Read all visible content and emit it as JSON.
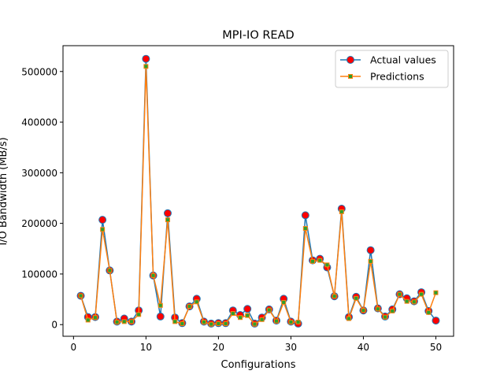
{
  "chart_data": {
    "type": "line",
    "title": "MPI-IO READ",
    "xlabel": "Configurations",
    "ylabel": "I/O Bandwidth (MB/s)",
    "xlim": [
      -1.45,
      52.45
    ],
    "ylim": [
      -23000,
      551000
    ],
    "xticks": [
      0,
      10,
      20,
      30,
      40,
      50
    ],
    "yticks": [
      0,
      100000,
      200000,
      300000,
      400000,
      500000
    ],
    "xtick_labels": [
      "0",
      "10",
      "20",
      "30",
      "40",
      "50"
    ],
    "ytick_labels": [
      "0",
      "100000",
      "200000",
      "300000",
      "400000",
      "500000"
    ],
    "grid": false,
    "legend_position": "upper right",
    "x": [
      1,
      2,
      3,
      4,
      5,
      6,
      7,
      8,
      9,
      10,
      11,
      12,
      13,
      14,
      15,
      16,
      17,
      18,
      19,
      20,
      21,
      22,
      23,
      24,
      25,
      26,
      27,
      28,
      29,
      30,
      31,
      32,
      33,
      34,
      35,
      36,
      37,
      38,
      39,
      40,
      41,
      42,
      43,
      44,
      45,
      46,
      47,
      48,
      49,
      50
    ],
    "series": [
      {
        "name": "Actual values",
        "color": "#1f77b4",
        "marker": "circle",
        "marker_face": "#ff0000",
        "values": [
          57000,
          15000,
          15000,
          207000,
          107000,
          6000,
          12000,
          6000,
          28000,
          525000,
          97000,
          16000,
          220000,
          14000,
          3000,
          36000,
          51000,
          6000,
          2000,
          3000,
          3000,
          28000,
          19000,
          31000,
          2000,
          14000,
          30000,
          8000,
          51000,
          6000,
          2000,
          216000,
          127000,
          130000,
          113000,
          56000,
          229000,
          15000,
          55000,
          28000,
          147000,
          32000,
          16000,
          30000,
          60000,
          52000,
          46000,
          64000,
          27000,
          8000
        ]
      },
      {
        "name": "Predictions",
        "color": "#ff7f0e",
        "marker": "square",
        "marker_face": "#2ca02c",
        "values": [
          57000,
          9000,
          14000,
          188000,
          107000,
          5000,
          6000,
          6000,
          20000,
          510000,
          97000,
          38000,
          207000,
          6000,
          2000,
          36000,
          45000,
          5000,
          1000,
          2000,
          2000,
          22000,
          14000,
          18000,
          1000,
          10000,
          29000,
          7000,
          44000,
          5000,
          5000,
          190000,
          125000,
          127000,
          118000,
          56000,
          223000,
          12000,
          52000,
          28000,
          125000,
          31000,
          15000,
          27000,
          60000,
          46000,
          45000,
          60000,
          24000,
          63000
        ]
      }
    ]
  }
}
